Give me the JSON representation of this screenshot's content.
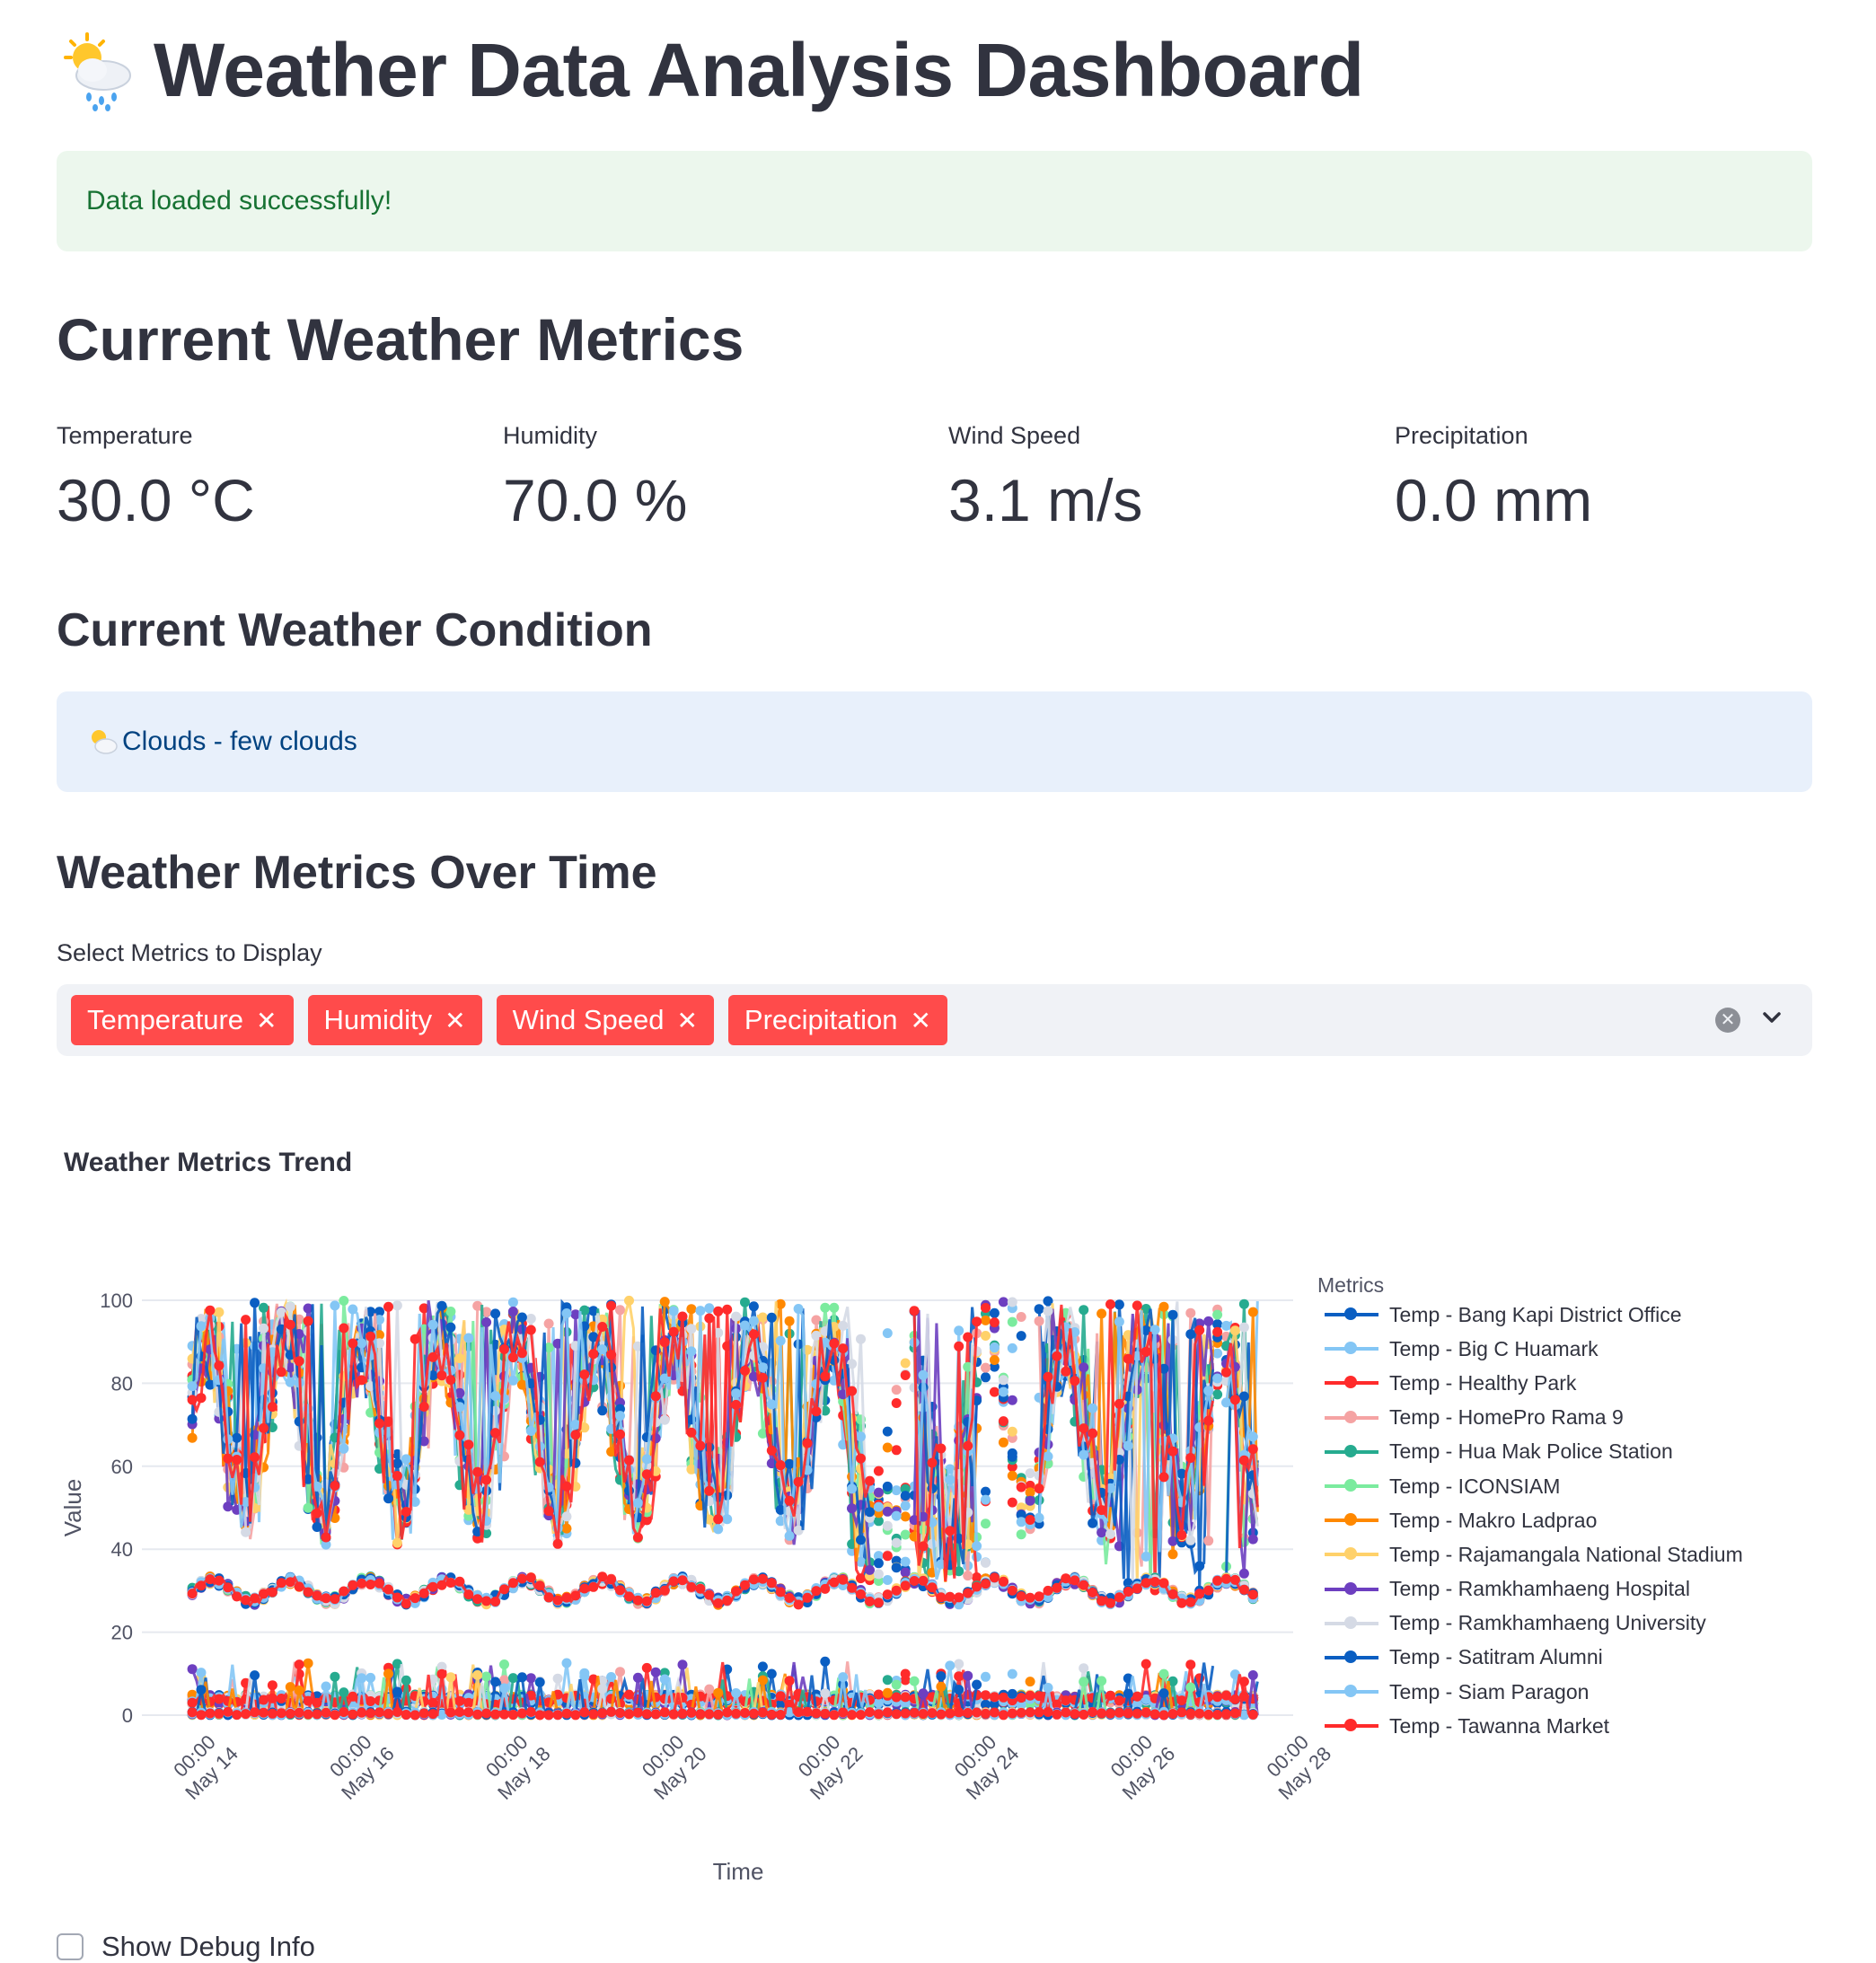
{
  "header": {
    "emoji_icon": "sun-behind-rain-cloud-icon",
    "title": "Weather Data Analysis Dashboard"
  },
  "status_alert": {
    "text": "Data loaded successfully!",
    "color": "#177233"
  },
  "current_metrics": {
    "heading": "Current Weather Metrics",
    "items": [
      {
        "label": "Temperature",
        "value": "30.0 °C"
      },
      {
        "label": "Humidity",
        "value": "70.0 %"
      },
      {
        "label": "Wind Speed",
        "value": "3.1 m/s"
      },
      {
        "label": "Precipitation",
        "value": "0.0 mm"
      }
    ]
  },
  "condition": {
    "heading": "Current Weather Condition",
    "icon": "sun-behind-cloud-icon",
    "text": "Clouds - few clouds"
  },
  "metrics_over_time": {
    "heading": "Weather Metrics Over Time",
    "select_label": "Select Metrics to Display",
    "selected_tags": [
      "Temperature",
      "Humidity",
      "Wind Speed",
      "Precipitation"
    ],
    "tag_color": "#ff4b4b"
  },
  "chart_data": {
    "type": "line",
    "title": "Weather Metrics Trend",
    "xlabel": "Time",
    "ylabel": "Value",
    "ylim": [
      0,
      100
    ],
    "yticks": [
      0,
      20,
      40,
      60,
      80,
      100
    ],
    "xticks": [
      "00:00\nMay 14",
      "00:00\nMay 16",
      "00:00\nMay 18",
      "00:00\nMay 20",
      "00:00\nMay 22",
      "00:00\nMay 24",
      "00:00\nMay 26",
      "00:00\nMay 28"
    ],
    "xrange_days": [
      13.7,
      28.1
    ],
    "grid": true,
    "legend_title": "Metrics",
    "legend_placement": "right",
    "series": [
      {
        "name": "Temp - Bang Kapi District Office",
        "color": "#0a5ec2"
      },
      {
        "name": "Temp - Big C Huamark",
        "color": "#84c6f5"
      },
      {
        "name": "Temp - Healthy Park",
        "color": "#ff2b2b"
      },
      {
        "name": "Temp - HomePro Rama 9",
        "color": "#f5a3a3"
      },
      {
        "name": "Temp - Hua Mak Police Station",
        "color": "#26ab8f"
      },
      {
        "name": "Temp - ICONSIAM",
        "color": "#7beb9e"
      },
      {
        "name": "Temp - Makro Ladprao",
        "color": "#ff8800"
      },
      {
        "name": "Temp - Rajamangala National Stadium",
        "color": "#ffd16a"
      },
      {
        "name": "Temp - Ramkhamhaeng Hospital",
        "color": "#6d3fc0"
      },
      {
        "name": "Temp - Ramkhamhaeng University",
        "color": "#d5dae5"
      },
      {
        "name": "Temp - Satitram Alumni",
        "color": "#0a5ec2"
      },
      {
        "name": "Temp - Siam Paragon",
        "color": "#84c6f5"
      },
      {
        "name": "Temp - Tawanna Market",
        "color": "#ff2b2b"
      }
    ]
  },
  "debug": {
    "label": "Show Debug Info",
    "checked": false
  }
}
